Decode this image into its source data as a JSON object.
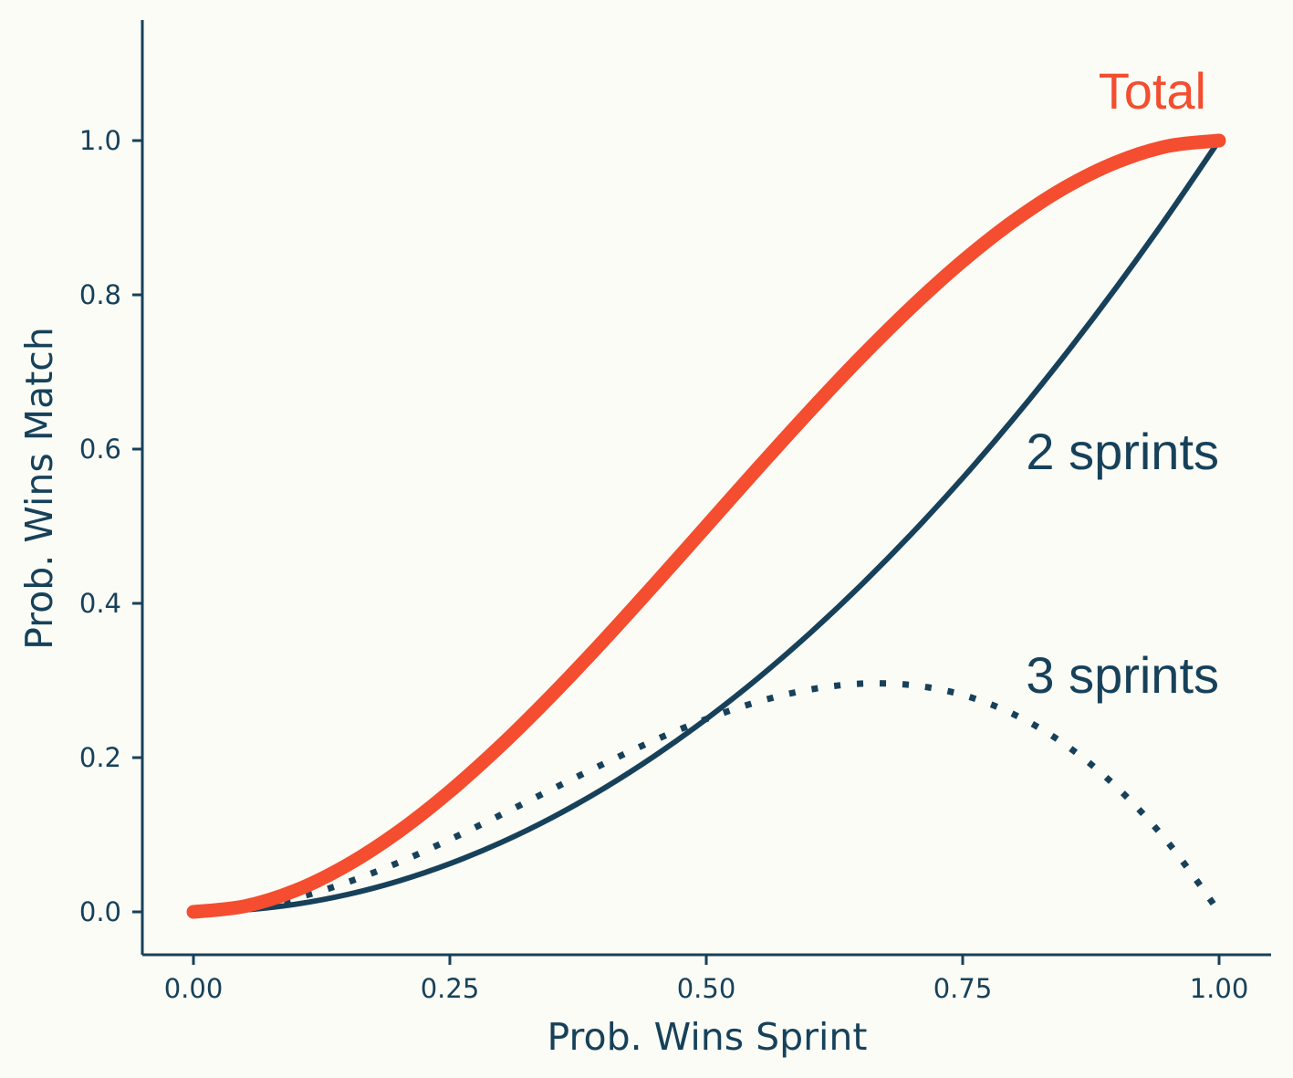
{
  "chart_data": {
    "type": "line",
    "title": "",
    "xlabel": "Prob. Wins Sprint",
    "ylabel": "Prob. Wins Match",
    "xlim": [
      -0.05,
      1.05
    ],
    "ylim": [
      -0.05,
      1.15
    ],
    "grid": false,
    "x_ticks": [
      "0.00",
      "0.25",
      "0.50",
      "0.75",
      "1.00"
    ],
    "y_ticks": [
      "0.0",
      "0.2",
      "0.4",
      "0.6",
      "0.8",
      "1.0"
    ],
    "x": [
      0.0,
      0.05,
      0.1,
      0.15,
      0.2,
      0.25,
      0.3,
      0.35,
      0.4,
      0.45,
      0.5,
      0.55,
      0.6,
      0.65,
      0.7,
      0.75,
      0.8,
      0.85,
      0.9,
      0.95,
      1.0
    ],
    "series": [
      {
        "name": "Total",
        "color": "#f44d2f",
        "style": "solid-thick",
        "values": [
          0.0,
          0.0073,
          0.028,
          0.0608,
          0.104,
          0.1563,
          0.216,
          0.2818,
          0.352,
          0.4253,
          0.5,
          0.5748,
          0.648,
          0.7183,
          0.784,
          0.8438,
          0.896,
          0.9393,
          0.972,
          0.9928,
          1.0
        ]
      },
      {
        "name": "2 sprints",
        "color": "#17415a",
        "style": "solid",
        "values": [
          0.0,
          0.0025,
          0.01,
          0.0225,
          0.04,
          0.0625,
          0.09,
          0.1225,
          0.16,
          0.2025,
          0.25,
          0.3025,
          0.36,
          0.4225,
          0.49,
          0.5625,
          0.64,
          0.7225,
          0.81,
          0.9025,
          1.0
        ]
      },
      {
        "name": "3 sprints",
        "color": "#17415a",
        "style": "dotted",
        "values": [
          0.0,
          0.0048,
          0.018,
          0.0383,
          0.064,
          0.0938,
          0.126,
          0.1593,
          0.192,
          0.2228,
          0.25,
          0.2723,
          0.288,
          0.2958,
          0.294,
          0.2813,
          0.256,
          0.2168,
          0.162,
          0.0903,
          0.0
        ]
      }
    ]
  }
}
